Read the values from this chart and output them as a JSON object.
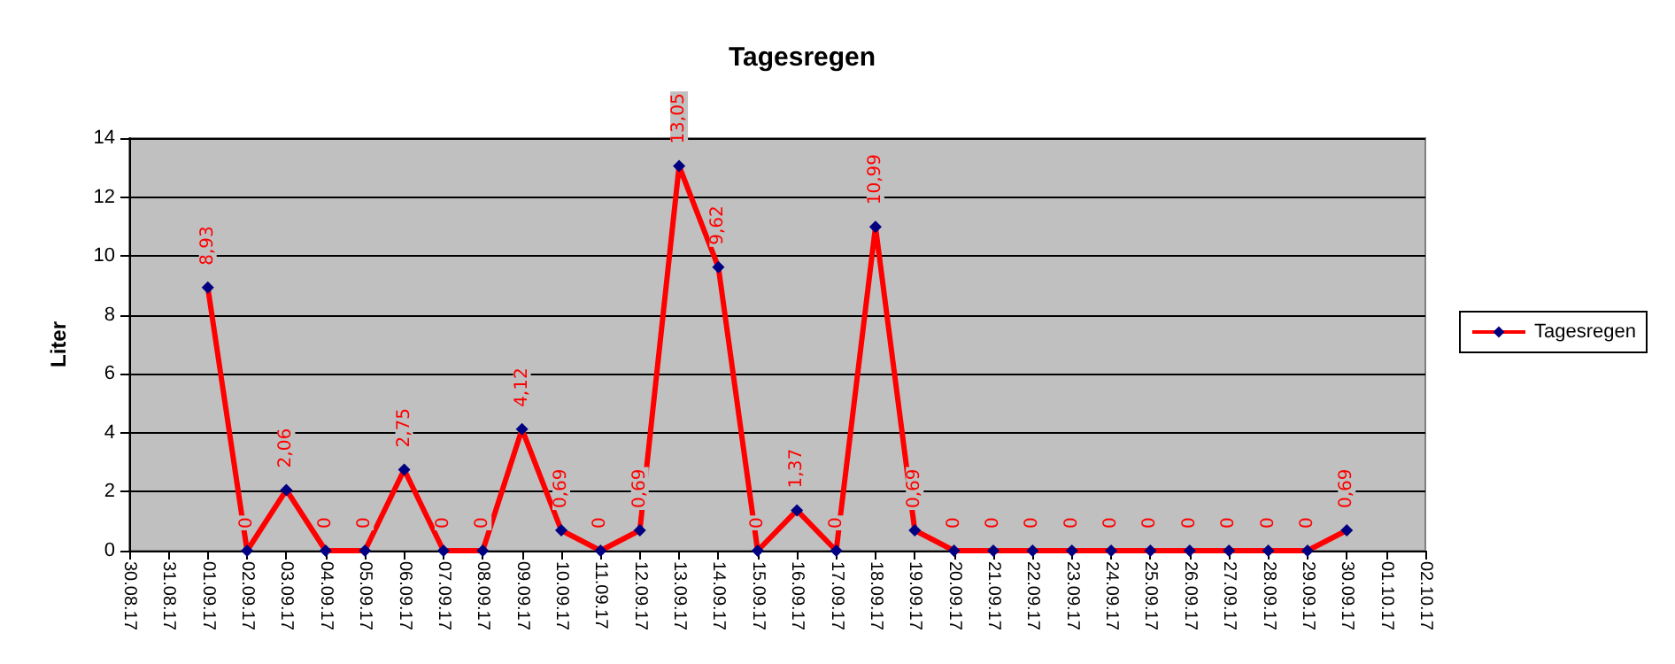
{
  "chart_data": {
    "type": "line",
    "title": "Tagesregen",
    "ylabel": "Liter",
    "categories": [
      "30.08.17",
      "31.08.17",
      "01.09.17",
      "02.09.17",
      "03.09.17",
      "04.09.17",
      "05.09.17",
      "06.09.17",
      "07.09.17",
      "08.09.17",
      "09.09.17",
      "10.09.17",
      "11.09.17",
      "12.09.17",
      "13.09.17",
      "14.09.17",
      "15.09.17",
      "16.09.17",
      "17.09.17",
      "18.09.17",
      "19.09.17",
      "20.09.17",
      "21.09.17",
      "22.09.17",
      "23.09.17",
      "24.09.17",
      "25.09.17",
      "26.09.17",
      "27.09.17",
      "28.09.17",
      "29.09.17",
      "30.09.17",
      "01.10.17",
      "02.10.17"
    ],
    "series": [
      {
        "name": "Tagesregen",
        "color": "#ff0000",
        "values": [
          null,
          null,
          8.93,
          0,
          2.06,
          0,
          0,
          2.75,
          0,
          0,
          4.12,
          0.69,
          0,
          0.69,
          13.05,
          9.62,
          0,
          1.37,
          0,
          10.99,
          0.69,
          0,
          0,
          0,
          0,
          0,
          0,
          0,
          0,
          0,
          0,
          0.69,
          null,
          null
        ],
        "value_labels": [
          null,
          null,
          "8,93",
          "0",
          "2,06",
          "0",
          "0",
          "2,75",
          "0",
          "0",
          "4,12",
          "0,69",
          "0",
          "0,69",
          "13,05",
          "9,62",
          "0",
          "1,37",
          "0",
          "10,99",
          "0,69",
          "0",
          "0",
          "0",
          "0",
          "0",
          "0",
          "0",
          "0",
          "0",
          "0",
          "0,69",
          null,
          null
        ]
      }
    ],
    "ylim": [
      0,
      14
    ],
    "yticks": [
      0,
      2,
      4,
      6,
      8,
      10,
      12,
      14
    ],
    "grid": "y",
    "legend": "right",
    "marker": "diamond",
    "line_style": "solid"
  }
}
